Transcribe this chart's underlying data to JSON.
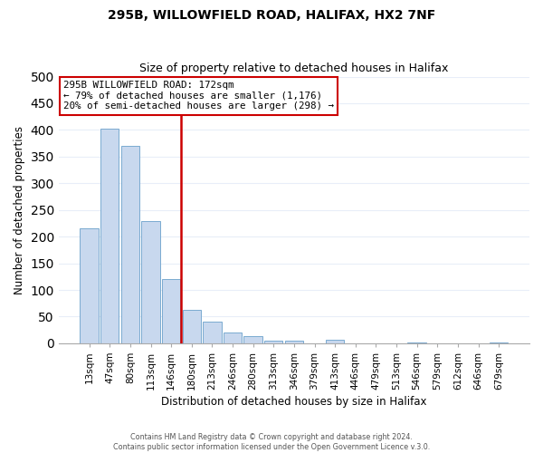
{
  "title": "295B, WILLOWFIELD ROAD, HALIFAX, HX2 7NF",
  "subtitle": "Size of property relative to detached houses in Halifax",
  "xlabel": "Distribution of detached houses by size in Halifax",
  "ylabel": "Number of detached properties",
  "bar_labels": [
    "13sqm",
    "47sqm",
    "80sqm",
    "113sqm",
    "146sqm",
    "180sqm",
    "213sqm",
    "246sqm",
    "280sqm",
    "313sqm",
    "346sqm",
    "379sqm",
    "413sqm",
    "446sqm",
    "479sqm",
    "513sqm",
    "546sqm",
    "579sqm",
    "612sqm",
    "646sqm",
    "679sqm"
  ],
  "bar_values": [
    215,
    403,
    370,
    230,
    120,
    63,
    40,
    20,
    13,
    5,
    5,
    0,
    7,
    0,
    0,
    0,
    2,
    0,
    0,
    0,
    2
  ],
  "bar_color": "#c8d8ee",
  "bar_edge_color": "#7aaad0",
  "vline_color": "#cc0000",
  "annotation_title": "295B WILLOWFIELD ROAD: 172sqm",
  "annotation_line1": "← 79% of detached houses are smaller (1,176)",
  "annotation_line2": "20% of semi-detached houses are larger (298) →",
  "annotation_box_color": "#cc0000",
  "ylim": [
    0,
    500
  ],
  "yticks": [
    0,
    50,
    100,
    150,
    200,
    250,
    300,
    350,
    400,
    450,
    500
  ],
  "footer1": "Contains HM Land Registry data © Crown copyright and database right 2024.",
  "footer2": "Contains public sector information licensed under the Open Government Licence v.3.0.",
  "plot_bg_color": "#ffffff",
  "fig_bg_color": "#ffffff",
  "grid_color": "#e8eef8"
}
